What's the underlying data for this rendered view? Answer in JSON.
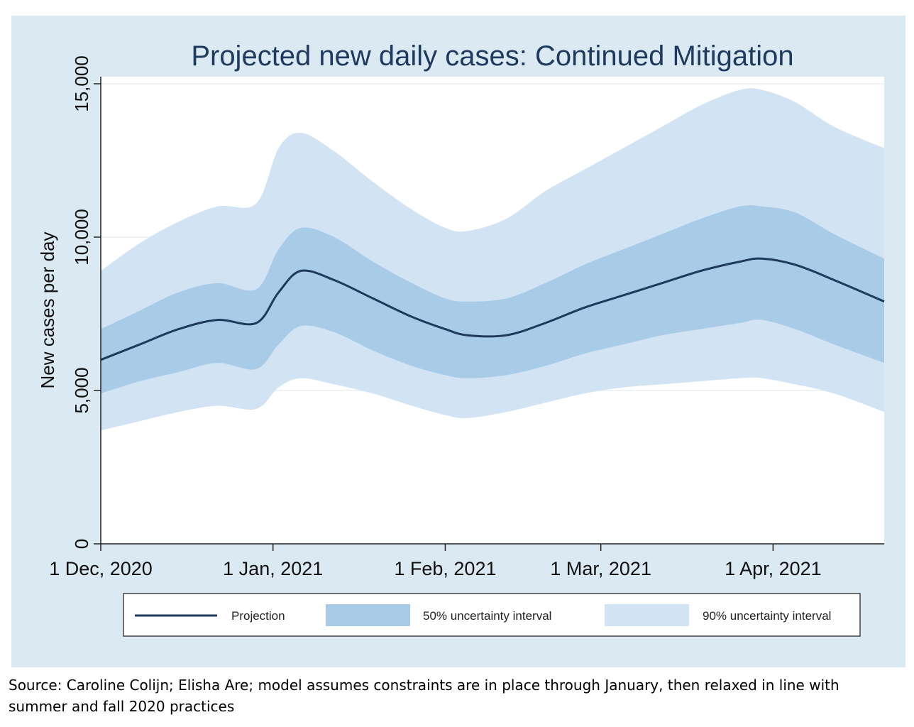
{
  "chart_data": {
    "type": "area",
    "title": "Projected new daily cases: Continued Mitigation",
    "xlabel": "",
    "ylabel": "New cases per day",
    "x_range": [
      "2020-12-01",
      "2021-04-21"
    ],
    "ylim": [
      0,
      15000
    ],
    "y_ticks": [
      0,
      5000,
      10000,
      15000
    ],
    "y_tick_labels": [
      "0",
      "5,000",
      "10,000",
      "15,000"
    ],
    "x_ticks": [
      "2020-12-01",
      "2021-01-01",
      "2021-02-01",
      "2021-03-01",
      "2021-04-01"
    ],
    "x_tick_labels": [
      "1 Dec, 2020",
      "1 Jan, 2021",
      "1 Feb, 2021",
      "1 Mar, 2021",
      "1 Apr, 2021"
    ],
    "grid": "horizontal",
    "legend_position": "bottom",
    "x": [
      "2020-12-01",
      "2020-12-08",
      "2020-12-15",
      "2020-12-22",
      "2020-12-29",
      "2021-01-02",
      "2021-01-06",
      "2021-01-12",
      "2021-01-19",
      "2021-01-26",
      "2021-02-01",
      "2021-02-05",
      "2021-02-12",
      "2021-02-19",
      "2021-02-26",
      "2021-03-05",
      "2021-03-12",
      "2021-03-19",
      "2021-03-26",
      "2021-03-30",
      "2021-04-05",
      "2021-04-12",
      "2021-04-21"
    ],
    "series": [
      {
        "name": "Projection",
        "role": "line",
        "color": "#1e3a5a",
        "values": [
          6000,
          6500,
          7000,
          7300,
          7200,
          8200,
          8900,
          8600,
          8000,
          7400,
          7000,
          6800,
          6800,
          7200,
          7700,
          8100,
          8500,
          8900,
          9200,
          9300,
          9100,
          8600,
          7900
        ]
      },
      {
        "name": "50% uncertainty interval",
        "role": "band",
        "color": "#a8cbe8",
        "lower": [
          4900,
          5300,
          5600,
          5900,
          5700,
          6500,
          7100,
          6900,
          6300,
          5800,
          5500,
          5400,
          5500,
          5800,
          6200,
          6500,
          6800,
          7000,
          7200,
          7300,
          7000,
          6500,
          5900
        ],
        "upper": [
          7000,
          7600,
          8200,
          8500,
          8300,
          9600,
          10300,
          10000,
          9200,
          8500,
          8000,
          7900,
          8000,
          8500,
          9100,
          9600,
          10100,
          10600,
          11000,
          11000,
          10800,
          10100,
          9300
        ]
      },
      {
        "name": "90% uncertainty interval",
        "role": "band",
        "color": "#d2e4f3",
        "lower": [
          3700,
          4000,
          4300,
          4500,
          4400,
          5100,
          5400,
          5200,
          4900,
          4500,
          4200,
          4100,
          4300,
          4600,
          4900,
          5100,
          5200,
          5300,
          5400,
          5400,
          5200,
          4900,
          4300
        ],
        "upper": [
          8900,
          9800,
          10500,
          11000,
          11100,
          12900,
          13400,
          12800,
          11800,
          10900,
          10300,
          10200,
          10600,
          11500,
          12200,
          12900,
          13600,
          14300,
          14800,
          14800,
          14400,
          13600,
          12900
        ]
      }
    ]
  },
  "source_note": "Source: Caroline Colijn; Elisha Are; model assumes constraints are in place through January, then relaxed in line with summer and fall 2020 practices"
}
